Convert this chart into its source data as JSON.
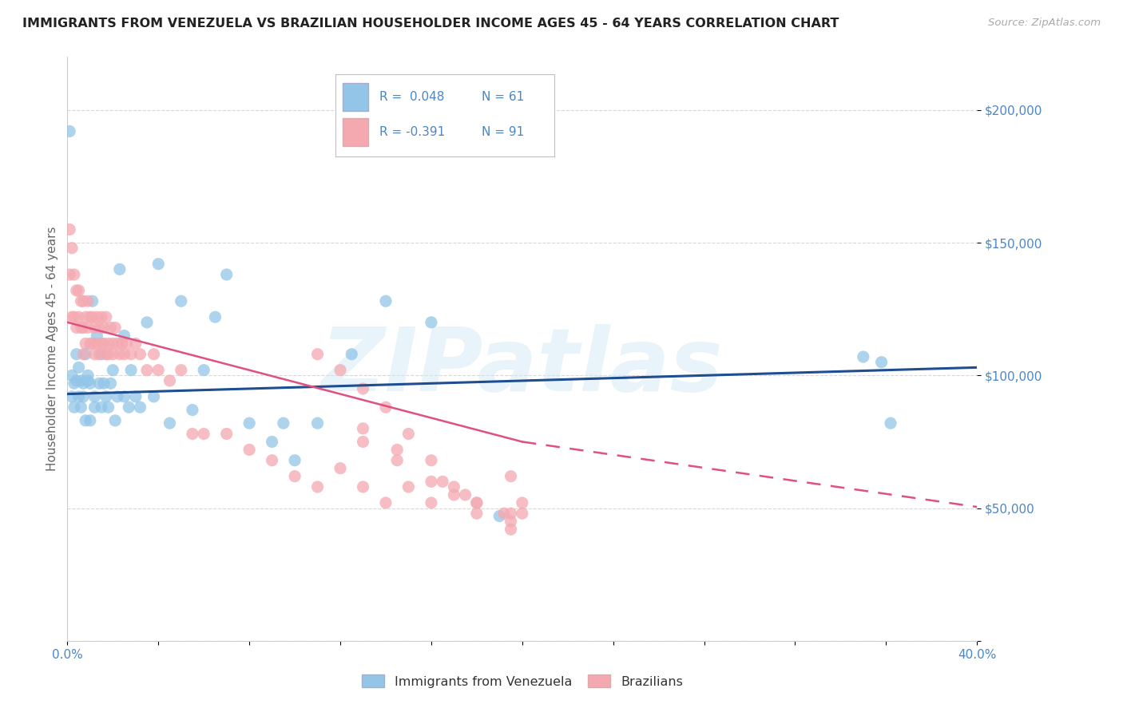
{
  "title": "IMMIGRANTS FROM VENEZUELA VS BRAZILIAN HOUSEHOLDER INCOME AGES 45 - 64 YEARS CORRELATION CHART",
  "source": "Source: ZipAtlas.com",
  "ylabel": "Householder Income Ages 45 - 64 years",
  "xlim": [
    0.0,
    0.4
  ],
  "ylim": [
    0,
    220000
  ],
  "yticks": [
    0,
    50000,
    100000,
    150000,
    200000
  ],
  "ytick_labels": [
    "",
    "$50,000",
    "$100,000",
    "$150,000",
    "$200,000"
  ],
  "xticks": [
    0.0,
    0.04,
    0.08,
    0.12,
    0.16,
    0.2,
    0.24,
    0.28,
    0.32,
    0.36,
    0.4
  ],
  "blue_color": "#92C5E8",
  "pink_color": "#F4A9B0",
  "blue_line_color": "#1f4e90",
  "pink_line_color": "#e05080",
  "text_color": "#4a86c8",
  "grid_color": "#d8d8d8",
  "watermark": "ZIPatlas",
  "R_venezuela": 0.048,
  "N_venezuela": 61,
  "R_brazil": -0.391,
  "N_brazil": 91,
  "venezuela_x": [
    0.001,
    0.002,
    0.002,
    0.003,
    0.003,
    0.004,
    0.004,
    0.005,
    0.005,
    0.006,
    0.006,
    0.007,
    0.007,
    0.008,
    0.008,
    0.009,
    0.009,
    0.01,
    0.01,
    0.011,
    0.012,
    0.012,
    0.013,
    0.014,
    0.015,
    0.015,
    0.016,
    0.017,
    0.018,
    0.019,
    0.02,
    0.021,
    0.022,
    0.023,
    0.025,
    0.025,
    0.027,
    0.028,
    0.03,
    0.032,
    0.035,
    0.038,
    0.04,
    0.045,
    0.05,
    0.055,
    0.06,
    0.065,
    0.07,
    0.08,
    0.09,
    0.095,
    0.1,
    0.11,
    0.125,
    0.14,
    0.16,
    0.19,
    0.35,
    0.358,
    0.362
  ],
  "venezuela_y": [
    192000,
    100000,
    92000,
    88000,
    97000,
    108000,
    98000,
    103000,
    92000,
    98000,
    88000,
    92000,
    97000,
    108000,
    83000,
    98000,
    100000,
    83000,
    97000,
    128000,
    92000,
    88000,
    115000,
    97000,
    108000,
    88000,
    97000,
    92000,
    88000,
    97000,
    102000,
    83000,
    92000,
    140000,
    115000,
    92000,
    88000,
    102000,
    92000,
    88000,
    120000,
    92000,
    142000,
    82000,
    128000,
    87000,
    102000,
    122000,
    138000,
    82000,
    75000,
    82000,
    68000,
    82000,
    108000,
    128000,
    120000,
    47000,
    107000,
    105000,
    82000
  ],
  "brazil_x": [
    0.001,
    0.001,
    0.002,
    0.002,
    0.003,
    0.003,
    0.004,
    0.004,
    0.005,
    0.005,
    0.006,
    0.006,
    0.007,
    0.007,
    0.007,
    0.008,
    0.008,
    0.009,
    0.009,
    0.01,
    0.01,
    0.011,
    0.011,
    0.012,
    0.012,
    0.013,
    0.013,
    0.014,
    0.014,
    0.015,
    0.015,
    0.016,
    0.016,
    0.017,
    0.017,
    0.018,
    0.018,
    0.019,
    0.02,
    0.02,
    0.021,
    0.022,
    0.023,
    0.024,
    0.025,
    0.026,
    0.028,
    0.03,
    0.032,
    0.035,
    0.038,
    0.04,
    0.045,
    0.05,
    0.055,
    0.06,
    0.07,
    0.08,
    0.09,
    0.1,
    0.11,
    0.12,
    0.13,
    0.14,
    0.15,
    0.16,
    0.17,
    0.18,
    0.195,
    0.2,
    0.13,
    0.145,
    0.16,
    0.175,
    0.192,
    0.13,
    0.145,
    0.165,
    0.18,
    0.195,
    0.11,
    0.12,
    0.13,
    0.14,
    0.15,
    0.16,
    0.17,
    0.18,
    0.195,
    0.195,
    0.2
  ],
  "brazil_y": [
    155000,
    138000,
    148000,
    122000,
    138000,
    122000,
    132000,
    118000,
    132000,
    122000,
    128000,
    118000,
    128000,
    118000,
    108000,
    122000,
    112000,
    128000,
    118000,
    122000,
    112000,
    122000,
    112000,
    118000,
    108000,
    122000,
    112000,
    118000,
    108000,
    112000,
    122000,
    112000,
    118000,
    108000,
    122000,
    112000,
    108000,
    118000,
    112000,
    108000,
    118000,
    112000,
    108000,
    112000,
    108000,
    112000,
    108000,
    112000,
    108000,
    102000,
    108000,
    102000,
    98000,
    102000,
    78000,
    78000,
    78000,
    72000,
    68000,
    62000,
    58000,
    65000,
    58000,
    52000,
    58000,
    52000,
    58000,
    52000,
    48000,
    48000,
    75000,
    68000,
    60000,
    55000,
    48000,
    80000,
    72000,
    60000,
    52000,
    45000,
    108000,
    102000,
    95000,
    88000,
    78000,
    68000,
    55000,
    48000,
    42000,
    62000,
    52000
  ]
}
